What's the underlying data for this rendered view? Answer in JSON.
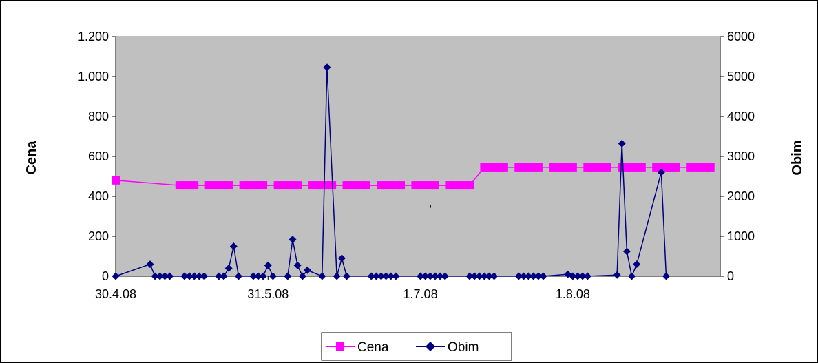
{
  "chart_data": {
    "type": "line",
    "ylabel_left": "Cena",
    "ylabel_right": "Obim",
    "annotation": ",",
    "left_axis": {
      "ylim": [
        0,
        1200
      ],
      "ticks": [
        0,
        200,
        400,
        600,
        800,
        1000,
        1200
      ],
      "tick_labels": [
        "0",
        "200",
        "400",
        "600",
        "800",
        "1.000",
        "1.200"
      ]
    },
    "right_axis": {
      "ylim": [
        0,
        6000
      ],
      "ticks": [
        0,
        1000,
        2000,
        3000,
        4000,
        5000,
        6000
      ],
      "tick_labels": [
        "0",
        "1000",
        "2000",
        "3000",
        "4000",
        "5000",
        "6000"
      ]
    },
    "x_axis": {
      "min": "2008-04-30",
      "max": "2008-08-31",
      "ticks": [
        "2008-04-30",
        "2008-05-31",
        "2008-07-01",
        "2008-08-01"
      ],
      "tick_labels": [
        "30.4.08",
        "31.5.08",
        "1.7.08",
        "1.8.08"
      ]
    },
    "grid": false,
    "plot_background": "#c0c0c0",
    "legend_position": "bottom-center",
    "series": [
      {
        "name": "Cena",
        "axis": "left",
        "color": "#ff00ff",
        "marker": "square",
        "points": [
          [
            "2008-04-30",
            480
          ],
          [
            "2008-05-13",
            455
          ],
          [
            "2008-05-14",
            455
          ],
          [
            "2008-05-15",
            455
          ],
          [
            "2008-05-16",
            455
          ],
          [
            "2008-05-19",
            455
          ],
          [
            "2008-05-20",
            455
          ],
          [
            "2008-05-21",
            455
          ],
          [
            "2008-05-22",
            455
          ],
          [
            "2008-05-23",
            455
          ],
          [
            "2008-05-26",
            455
          ],
          [
            "2008-05-27",
            455
          ],
          [
            "2008-05-28",
            455
          ],
          [
            "2008-05-29",
            455
          ],
          [
            "2008-05-30",
            455
          ],
          [
            "2008-06-02",
            455
          ],
          [
            "2008-06-03",
            455
          ],
          [
            "2008-06-04",
            455
          ],
          [
            "2008-06-05",
            455
          ],
          [
            "2008-06-06",
            455
          ],
          [
            "2008-06-09",
            455
          ],
          [
            "2008-06-10",
            455
          ],
          [
            "2008-06-11",
            455
          ],
          [
            "2008-06-12",
            455
          ],
          [
            "2008-06-13",
            455
          ],
          [
            "2008-06-16",
            455
          ],
          [
            "2008-06-17",
            455
          ],
          [
            "2008-06-18",
            455
          ],
          [
            "2008-06-19",
            455
          ],
          [
            "2008-06-20",
            455
          ],
          [
            "2008-06-23",
            455
          ],
          [
            "2008-06-24",
            455
          ],
          [
            "2008-06-25",
            455
          ],
          [
            "2008-06-26",
            455
          ],
          [
            "2008-06-27",
            455
          ],
          [
            "2008-06-30",
            455
          ],
          [
            "2008-07-01",
            455
          ],
          [
            "2008-07-02",
            455
          ],
          [
            "2008-07-03",
            455
          ],
          [
            "2008-07-04",
            455
          ],
          [
            "2008-07-07",
            455
          ],
          [
            "2008-07-08",
            455
          ],
          [
            "2008-07-09",
            455
          ],
          [
            "2008-07-10",
            455
          ],
          [
            "2008-07-11",
            455
          ],
          [
            "2008-07-14",
            545
          ],
          [
            "2008-07-15",
            545
          ],
          [
            "2008-07-16",
            545
          ],
          [
            "2008-07-17",
            545
          ],
          [
            "2008-07-18",
            545
          ],
          [
            "2008-07-21",
            545
          ],
          [
            "2008-07-22",
            545
          ],
          [
            "2008-07-23",
            545
          ],
          [
            "2008-07-24",
            545
          ],
          [
            "2008-07-25",
            545
          ],
          [
            "2008-07-28",
            545
          ],
          [
            "2008-07-29",
            545
          ],
          [
            "2008-07-30",
            545
          ],
          [
            "2008-07-31",
            545
          ],
          [
            "2008-08-01",
            545
          ],
          [
            "2008-08-04",
            545
          ],
          [
            "2008-08-05",
            545
          ],
          [
            "2008-08-06",
            545
          ],
          [
            "2008-08-07",
            545
          ],
          [
            "2008-08-08",
            545
          ],
          [
            "2008-08-11",
            545
          ],
          [
            "2008-08-12",
            545
          ],
          [
            "2008-08-13",
            545
          ],
          [
            "2008-08-14",
            545
          ],
          [
            "2008-08-15",
            545
          ],
          [
            "2008-08-18",
            545
          ],
          [
            "2008-08-19",
            545
          ],
          [
            "2008-08-20",
            545
          ],
          [
            "2008-08-21",
            545
          ],
          [
            "2008-08-22",
            545
          ],
          [
            "2008-08-25",
            545
          ],
          [
            "2008-08-26",
            545
          ],
          [
            "2008-08-27",
            545
          ],
          [
            "2008-08-28",
            545
          ],
          [
            "2008-08-29",
            545
          ]
        ]
      },
      {
        "name": "Obim",
        "axis": "right",
        "color": "#000080",
        "marker": "diamond",
        "points": [
          [
            "2008-04-30",
            0
          ],
          [
            "2008-05-07",
            300
          ],
          [
            "2008-05-08",
            0
          ],
          [
            "2008-05-09",
            0
          ],
          [
            "2008-05-10",
            0
          ],
          [
            "2008-05-11",
            0
          ],
          [
            "2008-05-14",
            0
          ],
          [
            "2008-05-15",
            0
          ],
          [
            "2008-05-16",
            0
          ],
          [
            "2008-05-17",
            0
          ],
          [
            "2008-05-18",
            0
          ],
          [
            "2008-05-21",
            0
          ],
          [
            "2008-05-22",
            0
          ],
          [
            "2008-05-23",
            200
          ],
          [
            "2008-05-24",
            750
          ],
          [
            "2008-05-25",
            0
          ],
          [
            "2008-05-28",
            0
          ],
          [
            "2008-05-29",
            0
          ],
          [
            "2008-05-30",
            0
          ],
          [
            "2008-05-31",
            270
          ],
          [
            "2008-06-01",
            0
          ],
          [
            "2008-06-04",
            0
          ],
          [
            "2008-06-05",
            920
          ],
          [
            "2008-06-06",
            270
          ],
          [
            "2008-06-07",
            0
          ],
          [
            "2008-06-08",
            150
          ],
          [
            "2008-06-11",
            0
          ],
          [
            "2008-06-12",
            5230
          ],
          [
            "2008-06-14",
            0
          ],
          [
            "2008-06-15",
            450
          ],
          [
            "2008-06-16",
            0
          ],
          [
            "2008-06-21",
            0
          ],
          [
            "2008-06-22",
            0
          ],
          [
            "2008-06-23",
            0
          ],
          [
            "2008-06-24",
            0
          ],
          [
            "2008-06-25",
            0
          ],
          [
            "2008-06-26",
            0
          ],
          [
            "2008-07-01",
            0
          ],
          [
            "2008-07-02",
            0
          ],
          [
            "2008-07-03",
            0
          ],
          [
            "2008-07-04",
            0
          ],
          [
            "2008-07-05",
            0
          ],
          [
            "2008-07-06",
            0
          ],
          [
            "2008-07-11",
            0
          ],
          [
            "2008-07-12",
            0
          ],
          [
            "2008-07-13",
            0
          ],
          [
            "2008-07-14",
            0
          ],
          [
            "2008-07-15",
            0
          ],
          [
            "2008-07-16",
            0
          ],
          [
            "2008-07-21",
            0
          ],
          [
            "2008-07-22",
            0
          ],
          [
            "2008-07-23",
            0
          ],
          [
            "2008-07-24",
            0
          ],
          [
            "2008-07-25",
            0
          ],
          [
            "2008-07-26",
            0
          ],
          [
            "2008-07-31",
            50
          ],
          [
            "2008-08-01",
            0
          ],
          [
            "2008-08-02",
            0
          ],
          [
            "2008-08-03",
            0
          ],
          [
            "2008-08-04",
            0
          ],
          [
            "2008-08-10",
            30
          ],
          [
            "2008-08-11",
            3320
          ],
          [
            "2008-08-12",
            620
          ],
          [
            "2008-08-13",
            0
          ],
          [
            "2008-08-14",
            300
          ],
          [
            "2008-08-19",
            2600
          ],
          [
            "2008-08-20",
            0
          ]
        ]
      }
    ],
    "legend": [
      {
        "name": "Cena",
        "color": "#ff00ff",
        "marker": "square"
      },
      {
        "name": "Obim",
        "color": "#000080",
        "marker": "diamond"
      }
    ]
  }
}
